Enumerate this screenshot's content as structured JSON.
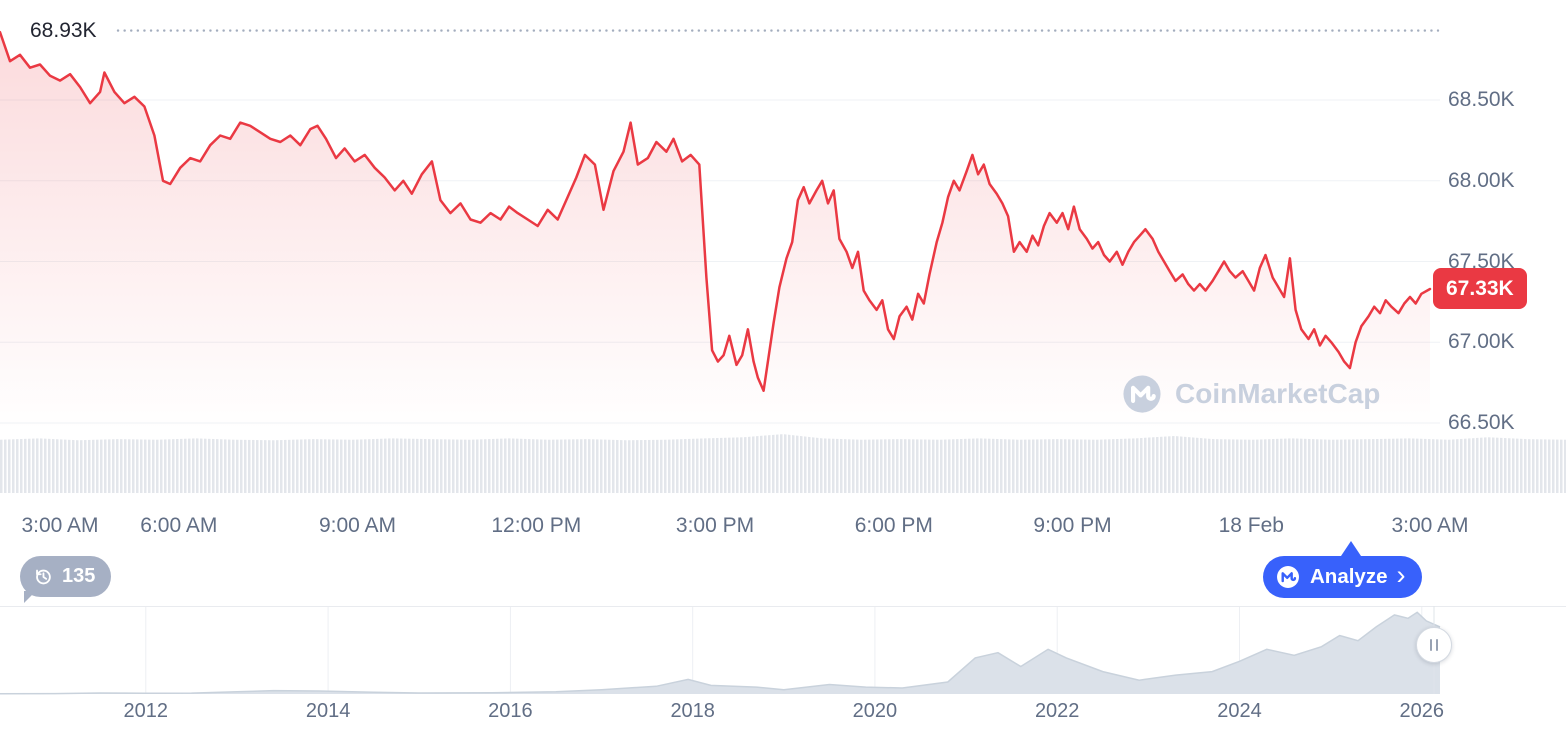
{
  "watermark": {
    "text": "CoinMarketCap"
  },
  "toolbar": {
    "history_count": "135",
    "analyze_label": "Analyze",
    "analyze_chevron": "›"
  },
  "chart_data": {
    "type": "line",
    "title": "",
    "xlabel": "",
    "ylabel": "",
    "main": {
      "type": "line",
      "unit": "thousand USD",
      "line_color": "#ea3943",
      "fill_color_top": "rgba(234,57,67,0.20)",
      "ylim": [
        66.35,
        69.0
      ],
      "high": {
        "label": "68.93K",
        "value": 68.93
      },
      "current": {
        "label": "67.33K",
        "value": 67.33
      },
      "y_ticks": [
        {
          "label": "68.50K",
          "value": 68.5
        },
        {
          "label": "68.00K",
          "value": 68.0
        },
        {
          "label": "67.50K",
          "value": 67.5
        },
        {
          "label": "67.00K",
          "value": 67.0
        },
        {
          "label": "66.50K",
          "value": 66.5
        }
      ],
      "x_ticks": [
        "3:00 AM",
        "6:00 AM",
        "9:00 AM",
        "12:00 PM",
        "3:00 PM",
        "6:00 PM",
        "9:00 PM",
        "18 Feb",
        "3:00 AM"
      ],
      "series": [
        [
          0,
          68.92
        ],
        [
          0.007,
          68.74
        ],
        [
          0.014,
          68.78
        ],
        [
          0.021,
          68.7
        ],
        [
          0.028,
          68.72
        ],
        [
          0.035,
          68.65
        ],
        [
          0.042,
          68.62
        ],
        [
          0.049,
          68.66
        ],
        [
          0.056,
          68.58
        ],
        [
          0.063,
          68.48
        ],
        [
          0.07,
          68.55
        ],
        [
          0.073,
          68.67
        ],
        [
          0.08,
          68.55
        ],
        [
          0.087,
          68.48
        ],
        [
          0.094,
          68.52
        ],
        [
          0.101,
          68.46
        ],
        [
          0.108,
          68.28
        ],
        [
          0.114,
          68.0
        ],
        [
          0.119,
          67.98
        ],
        [
          0.126,
          68.08
        ],
        [
          0.133,
          68.14
        ],
        [
          0.14,
          68.12
        ],
        [
          0.147,
          68.22
        ],
        [
          0.154,
          68.28
        ],
        [
          0.161,
          68.26
        ],
        [
          0.168,
          68.36
        ],
        [
          0.175,
          68.34
        ],
        [
          0.182,
          68.3
        ],
        [
          0.189,
          68.26
        ],
        [
          0.196,
          68.24
        ],
        [
          0.203,
          68.28
        ],
        [
          0.21,
          68.22
        ],
        [
          0.217,
          68.32
        ],
        [
          0.222,
          68.34
        ],
        [
          0.228,
          68.26
        ],
        [
          0.235,
          68.14
        ],
        [
          0.241,
          68.2
        ],
        [
          0.248,
          68.12
        ],
        [
          0.255,
          68.16
        ],
        [
          0.262,
          68.08
        ],
        [
          0.269,
          68.02
        ],
        [
          0.276,
          67.94
        ],
        [
          0.282,
          68.0
        ],
        [
          0.288,
          67.92
        ],
        [
          0.295,
          68.04
        ],
        [
          0.302,
          68.12
        ],
        [
          0.308,
          67.88
        ],
        [
          0.315,
          67.8
        ],
        [
          0.322,
          67.86
        ],
        [
          0.329,
          67.76
        ],
        [
          0.336,
          67.74
        ],
        [
          0.343,
          67.8
        ],
        [
          0.35,
          67.76
        ],
        [
          0.356,
          67.84
        ],
        [
          0.362,
          67.8
        ],
        [
          0.369,
          67.76
        ],
        [
          0.376,
          67.72
        ],
        [
          0.383,
          67.82
        ],
        [
          0.39,
          67.76
        ],
        [
          0.396,
          67.88
        ],
        [
          0.403,
          68.02
        ],
        [
          0.409,
          68.16
        ],
        [
          0.416,
          68.1
        ],
        [
          0.422,
          67.82
        ],
        [
          0.429,
          68.06
        ],
        [
          0.436,
          68.18
        ],
        [
          0.441,
          68.36
        ],
        [
          0.446,
          68.1
        ],
        [
          0.453,
          68.14
        ],
        [
          0.459,
          68.24
        ],
        [
          0.466,
          68.18
        ],
        [
          0.471,
          68.26
        ],
        [
          0.477,
          68.12
        ],
        [
          0.483,
          68.16
        ],
        [
          0.489,
          68.1
        ],
        [
          0.494,
          67.4
        ],
        [
          0.498,
          66.95
        ],
        [
          0.502,
          66.88
        ],
        [
          0.506,
          66.92
        ],
        [
          0.51,
          67.04
        ],
        [
          0.515,
          66.86
        ],
        [
          0.519,
          66.92
        ],
        [
          0.523,
          67.08
        ],
        [
          0.527,
          66.88
        ],
        [
          0.53,
          66.78
        ],
        [
          0.534,
          66.7
        ],
        [
          0.537,
          66.88
        ],
        [
          0.541,
          67.12
        ],
        [
          0.545,
          67.34
        ],
        [
          0.55,
          67.52
        ],
        [
          0.554,
          67.62
        ],
        [
          0.558,
          67.88
        ],
        [
          0.562,
          67.96
        ],
        [
          0.566,
          67.86
        ],
        [
          0.571,
          67.94
        ],
        [
          0.575,
          68.0
        ],
        [
          0.579,
          67.86
        ],
        [
          0.583,
          67.94
        ],
        [
          0.587,
          67.64
        ],
        [
          0.592,
          67.56
        ],
        [
          0.596,
          67.46
        ],
        [
          0.6,
          67.56
        ],
        [
          0.604,
          67.32
        ],
        [
          0.608,
          67.26
        ],
        [
          0.613,
          67.2
        ],
        [
          0.617,
          67.26
        ],
        [
          0.621,
          67.08
        ],
        [
          0.625,
          67.02
        ],
        [
          0.629,
          67.16
        ],
        [
          0.634,
          67.22
        ],
        [
          0.638,
          67.14
        ],
        [
          0.642,
          67.3
        ],
        [
          0.646,
          67.24
        ],
        [
          0.65,
          67.42
        ],
        [
          0.655,
          67.62
        ],
        [
          0.659,
          67.74
        ],
        [
          0.663,
          67.9
        ],
        [
          0.667,
          68.0
        ],
        [
          0.671,
          67.94
        ],
        [
          0.676,
          68.06
        ],
        [
          0.68,
          68.16
        ],
        [
          0.684,
          68.04
        ],
        [
          0.688,
          68.1
        ],
        [
          0.692,
          67.98
        ],
        [
          0.697,
          67.92
        ],
        [
          0.701,
          67.86
        ],
        [
          0.705,
          67.78
        ],
        [
          0.709,
          67.56
        ],
        [
          0.713,
          67.62
        ],
        [
          0.718,
          67.56
        ],
        [
          0.722,
          67.66
        ],
        [
          0.726,
          67.6
        ],
        [
          0.73,
          67.72
        ],
        [
          0.734,
          67.8
        ],
        [
          0.739,
          67.74
        ],
        [
          0.743,
          67.8
        ],
        [
          0.747,
          67.7
        ],
        [
          0.751,
          67.84
        ],
        [
          0.755,
          67.7
        ],
        [
          0.76,
          67.64
        ],
        [
          0.764,
          67.58
        ],
        [
          0.768,
          67.62
        ],
        [
          0.772,
          67.54
        ],
        [
          0.776,
          67.5
        ],
        [
          0.781,
          67.56
        ],
        [
          0.785,
          67.48
        ],
        [
          0.789,
          67.56
        ],
        [
          0.793,
          67.62
        ],
        [
          0.797,
          67.66
        ],
        [
          0.801,
          67.7
        ],
        [
          0.806,
          67.64
        ],
        [
          0.81,
          67.56
        ],
        [
          0.814,
          67.5
        ],
        [
          0.818,
          67.44
        ],
        [
          0.822,
          67.38
        ],
        [
          0.827,
          67.42
        ],
        [
          0.831,
          67.36
        ],
        [
          0.835,
          67.32
        ],
        [
          0.839,
          67.36
        ],
        [
          0.843,
          67.32
        ],
        [
          0.848,
          67.38
        ],
        [
          0.852,
          67.44
        ],
        [
          0.856,
          67.5
        ],
        [
          0.86,
          67.44
        ],
        [
          0.864,
          67.4
        ],
        [
          0.869,
          67.44
        ],
        [
          0.873,
          67.38
        ],
        [
          0.877,
          67.32
        ],
        [
          0.881,
          67.46
        ],
        [
          0.885,
          67.54
        ],
        [
          0.89,
          67.4
        ],
        [
          0.894,
          67.34
        ],
        [
          0.898,
          67.28
        ],
        [
          0.902,
          67.52
        ],
        [
          0.906,
          67.2
        ],
        [
          0.91,
          67.08
        ],
        [
          0.915,
          67.02
        ],
        [
          0.919,
          67.08
        ],
        [
          0.923,
          66.98
        ],
        [
          0.927,
          67.04
        ],
        [
          0.931,
          67.0
        ],
        [
          0.936,
          66.94
        ],
        [
          0.94,
          66.88
        ],
        [
          0.944,
          66.84
        ],
        [
          0.948,
          67.0
        ],
        [
          0.952,
          67.1
        ],
        [
          0.957,
          67.16
        ],
        [
          0.961,
          67.22
        ],
        [
          0.965,
          67.18
        ],
        [
          0.969,
          67.26
        ],
        [
          0.973,
          67.22
        ],
        [
          0.978,
          67.18
        ],
        [
          0.982,
          67.24
        ],
        [
          0.986,
          67.28
        ],
        [
          0.99,
          67.24
        ],
        [
          0.994,
          67.3
        ],
        [
          1,
          67.33
        ]
      ],
      "volume_profile": [
        0.86,
        0.88,
        0.85,
        0.87,
        0.86,
        0.88,
        0.86,
        0.85,
        0.87,
        0.86,
        0.88,
        0.87,
        0.86,
        0.88,
        0.86,
        0.87,
        0.85,
        0.86,
        0.88,
        0.9,
        0.95,
        0.88,
        0.86,
        0.87,
        0.86,
        0.88,
        0.86,
        0.87,
        0.86,
        0.88,
        0.92,
        0.87,
        0.86,
        0.88,
        0.86,
        0.87,
        0.88,
        0.86,
        0.9,
        0.87,
        0.86
      ]
    },
    "navigator": {
      "type": "area",
      "x_ticks": [
        "2012",
        "2014",
        "2016",
        "2018",
        "2020",
        "2022",
        "2024",
        "2026"
      ],
      "x_range": [
        2010.4,
        2026.2
      ],
      "points": [
        [
          2010.4,
          0.004
        ],
        [
          2011,
          0.005
        ],
        [
          2011.5,
          0.012
        ],
        [
          2012,
          0.008
        ],
        [
          2012.5,
          0.01
        ],
        [
          2013,
          0.025
        ],
        [
          2013.4,
          0.04
        ],
        [
          2013.9,
          0.035
        ],
        [
          2014.5,
          0.02
        ],
        [
          2015,
          0.012
        ],
        [
          2015.8,
          0.015
        ],
        [
          2016.5,
          0.025
        ],
        [
          2017,
          0.05
        ],
        [
          2017.6,
          0.09
        ],
        [
          2017.95,
          0.17
        ],
        [
          2018.2,
          0.1
        ],
        [
          2018.7,
          0.08
        ],
        [
          2019,
          0.05
        ],
        [
          2019.5,
          0.11
        ],
        [
          2019.9,
          0.08
        ],
        [
          2020.3,
          0.07
        ],
        [
          2020.8,
          0.14
        ],
        [
          2021.1,
          0.42
        ],
        [
          2021.35,
          0.48
        ],
        [
          2021.6,
          0.32
        ],
        [
          2021.9,
          0.52
        ],
        [
          2022.1,
          0.42
        ],
        [
          2022.5,
          0.26
        ],
        [
          2022.9,
          0.16
        ],
        [
          2023.3,
          0.22
        ],
        [
          2023.7,
          0.26
        ],
        [
          2024.0,
          0.38
        ],
        [
          2024.3,
          0.52
        ],
        [
          2024.6,
          0.45
        ],
        [
          2024.9,
          0.55
        ],
        [
          2025.1,
          0.68
        ],
        [
          2025.3,
          0.62
        ],
        [
          2025.5,
          0.78
        ],
        [
          2025.7,
          0.92
        ],
        [
          2025.85,
          0.88
        ],
        [
          2025.95,
          0.95
        ],
        [
          2026.05,
          0.85
        ],
        [
          2026.2,
          0.78
        ]
      ]
    }
  }
}
